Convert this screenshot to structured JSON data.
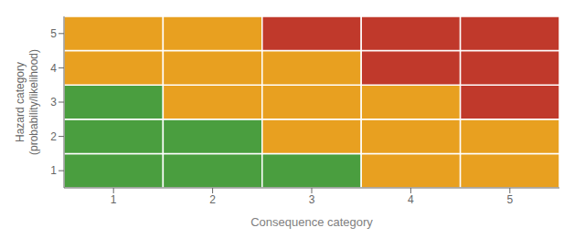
{
  "chart_data": {
    "type": "heatmap",
    "x_label": "Consequence category",
    "y_label": "Hazard category\n(probability/likelihood)",
    "categories": [
      "1",
      "2",
      "3",
      "4",
      "5"
    ],
    "y_categories": [
      "1",
      "2",
      "3",
      "4",
      "5"
    ],
    "cells": [
      [
        "#4a9e3f",
        "#4a9e3f",
        "#4a9e3f",
        "#e8a020",
        "#e8a020"
      ],
      [
        "#4a9e3f",
        "#4a9e3f",
        "#e8a020",
        "#e8a020",
        "#e8a020"
      ],
      [
        "#4a9e3f",
        "#e8a020",
        "#e8a020",
        "#e8a020",
        "#c0392b"
      ],
      [
        "#e8a020",
        "#e8a020",
        "#e8a020",
        "#c0392b",
        "#c0392b"
      ],
      [
        "#e8a020",
        "#e8a020",
        "#c0392b",
        "#c0392b",
        "#c0392b"
      ]
    ],
    "grid": false,
    "legend": false
  }
}
